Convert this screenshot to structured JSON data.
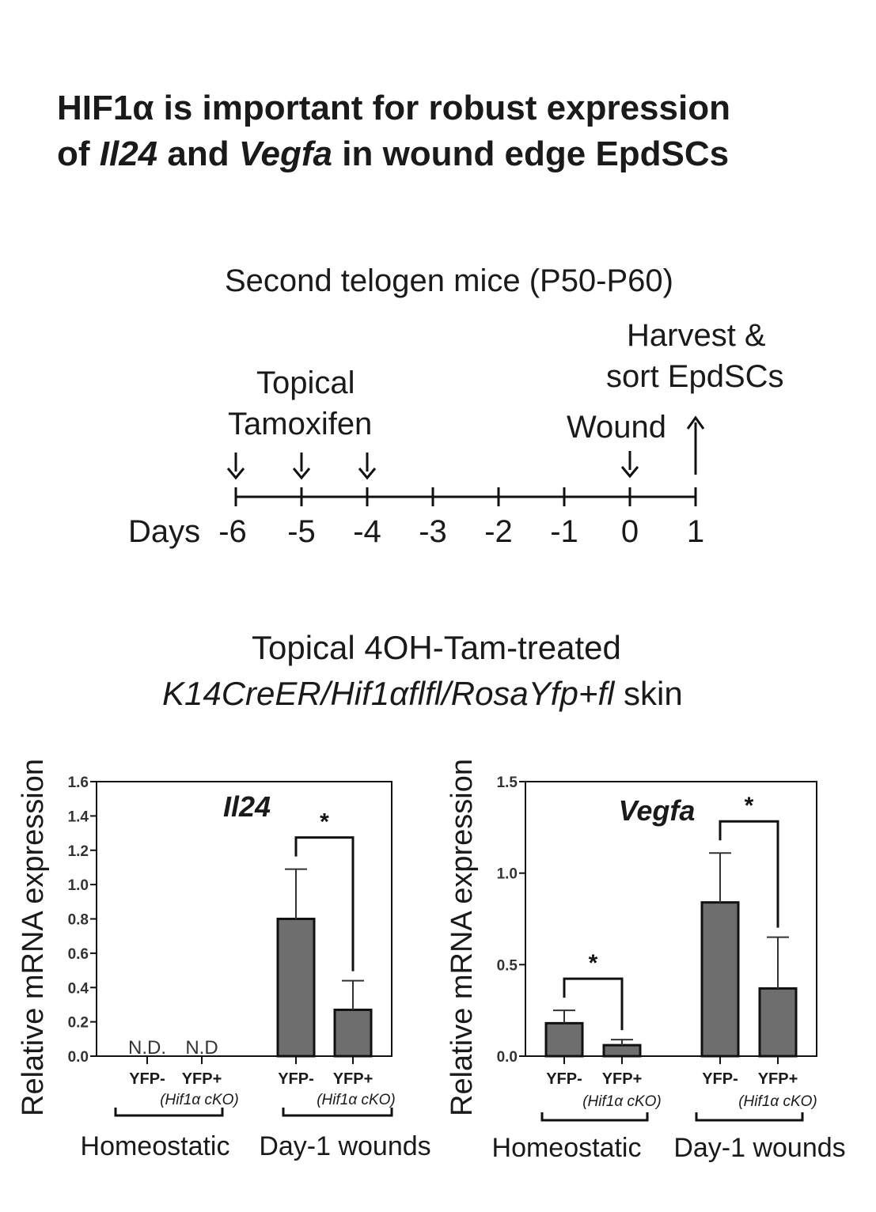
{
  "title": {
    "line1": "HIF1α is important for robust expression",
    "line2_prefix": "of ",
    "line2_gene1": "Il24",
    "line2_mid": " and ",
    "line2_gene2": "Vegfa",
    "line2_suffix": " in wound edge EpdSCs"
  },
  "timeline": {
    "header": "Second telogen mice (P50-P60)",
    "topical_line1": "Topical",
    "topical_line2": "Tamoxifen",
    "harvest_line1": "Harvest &",
    "harvest_line2": "sort EpdSCs",
    "wound": "Wound",
    "days_label": "Days",
    "days": [
      "-6",
      "-5",
      "-4",
      "-3",
      "-2",
      "-1",
      "0",
      "1"
    ]
  },
  "condition": {
    "line1": "Topical 4OH-Tam-treated",
    "line2_italic": "K14CreER/Hif1αflfl/RosaYfp+fl",
    "line2_plain": " skin"
  },
  "chart_data": [
    {
      "type": "bar",
      "title": "Il24",
      "ylabel": "Relative mRNA expression",
      "ylim": [
        0,
        1.6
      ],
      "yticks": [
        "0.0",
        "0.2",
        "0.4",
        "0.6",
        "0.8",
        "1.0",
        "1.2",
        "1.4",
        "1.6"
      ],
      "groups": [
        "Homeostatic",
        "Day-1 wounds"
      ],
      "categories": [
        "YFP-",
        "YFP+",
        "YFP-",
        "YFP+"
      ],
      "category_note": "(Hif1α cKO)",
      "values": [
        null,
        null,
        0.8,
        0.27
      ],
      "errors": [
        null,
        null,
        0.29,
        0.17
      ],
      "value_labels": [
        "N.D.",
        "N.D",
        "",
        ""
      ],
      "significance": [
        {
          "between": [
            2,
            3
          ],
          "label": "*"
        }
      ],
      "bar_color": "#6e6e6e"
    },
    {
      "type": "bar",
      "title": "Vegfa",
      "ylabel": "Relative mRNA expression",
      "ylim": [
        0,
        1.5
      ],
      "yticks": [
        "0.0",
        "0.5",
        "1.0",
        "1.5"
      ],
      "groups": [
        "Homeostatic",
        "Day-1 wounds"
      ],
      "categories": [
        "YFP-",
        "YFP+",
        "YFP-",
        "YFP+"
      ],
      "category_note": "(Hif1α cKO)",
      "values": [
        0.18,
        0.06,
        0.84,
        0.37
      ],
      "errors": [
        0.07,
        0.03,
        0.27,
        0.28
      ],
      "significance": [
        {
          "between": [
            0,
            1
          ],
          "label": "*"
        },
        {
          "between": [
            2,
            3
          ],
          "label": "*"
        }
      ],
      "bar_color": "#6e6e6e"
    }
  ]
}
